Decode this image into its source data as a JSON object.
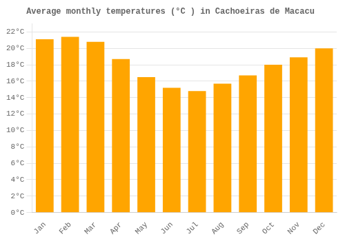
{
  "chart_data": {
    "type": "bar",
    "title": "Average monthly temperatures (°C ) in Cachoeiras de Macacu",
    "categories": [
      "Jan",
      "Feb",
      "Mar",
      "Apr",
      "May",
      "Jun",
      "Jul",
      "Aug",
      "Sep",
      "Oct",
      "Nov",
      "Dec"
    ],
    "values": [
      21.1,
      21.4,
      20.8,
      18.7,
      16.5,
      15.2,
      14.8,
      15.7,
      16.7,
      18.0,
      18.9,
      20.0
    ],
    "color": "#FFA500",
    "ylim": [
      0,
      23
    ],
    "yticks": [
      {
        "value": 0,
        "label": "0°C"
      },
      {
        "value": 2,
        "label": "2°C"
      },
      {
        "value": 4,
        "label": "4°C"
      },
      {
        "value": 6,
        "label": "6°C"
      },
      {
        "value": 8,
        "label": "8°C"
      },
      {
        "value": 10,
        "label": "10°C"
      },
      {
        "value": 12,
        "label": "12°C"
      },
      {
        "value": 14,
        "label": "14°C"
      },
      {
        "value": 16,
        "label": "16°C"
      },
      {
        "value": 18,
        "label": "18°C"
      },
      {
        "value": 20,
        "label": "20°C"
      },
      {
        "value": 22,
        "label": "22°C"
      }
    ],
    "grid": "y"
  }
}
